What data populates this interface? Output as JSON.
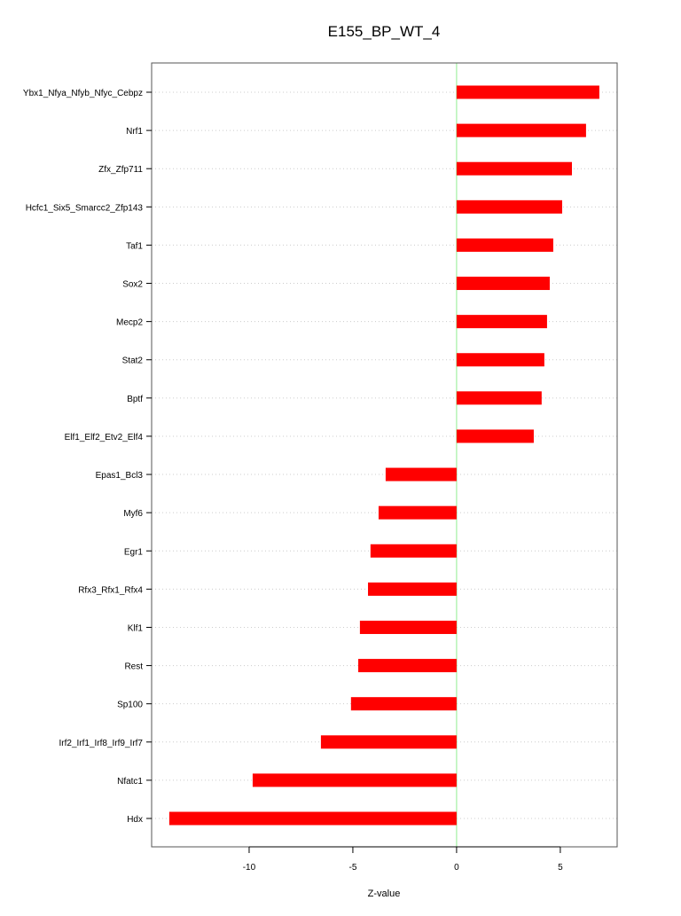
{
  "chart_data": {
    "type": "bar",
    "orientation": "horizontal",
    "title": "E155_BP_WT_4",
    "xlabel": "Z-value",
    "ylabel": "",
    "xlim": [
      -14.7,
      7.74
    ],
    "xticks": [
      -10,
      -5,
      0,
      5
    ],
    "grid": true,
    "bar_color": "#ff0000",
    "zero_line_color": "#90ee90",
    "categories": [
      "Ybx1_Nfya_Nfyb_Nfyc_Cebpz",
      "Nrf1",
      "Zfx_Zfp711",
      "Hcfc1_Six5_Smarcc2_Zfp143",
      "Taf1",
      "Sox2",
      "Mecp2",
      "Stat2",
      "Bptf",
      "Elf1_Elf2_Etv2_Elf4",
      "Epas1_Bcl3",
      "Myf6",
      "Egr1",
      "Rfx3_Rfx1_Rfx4",
      "Klf1",
      "Rest",
      "Sp100",
      "Irf2_Irf1_Irf8_Irf9_Irf7",
      "Nfatc1",
      "Hdx"
    ],
    "values": [
      6.88,
      6.24,
      5.56,
      5.09,
      4.66,
      4.49,
      4.36,
      4.23,
      4.1,
      3.72,
      -3.42,
      -3.76,
      -4.15,
      -4.27,
      -4.66,
      -4.74,
      -5.09,
      -6.54,
      -9.83,
      -13.85
    ]
  }
}
